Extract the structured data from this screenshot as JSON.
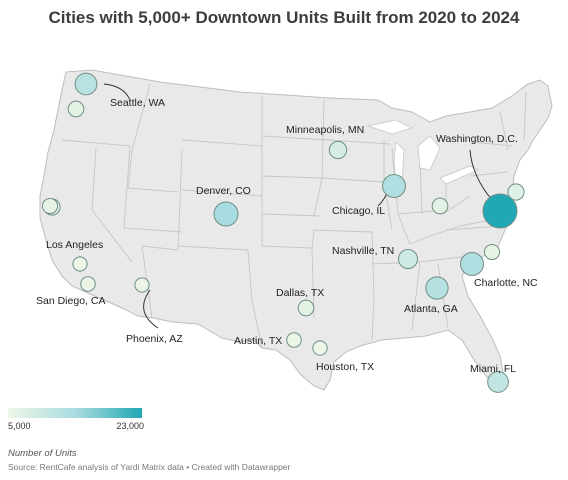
{
  "title": "Cities with 5,000+ Downtown Units Built from 2020 to 2024",
  "legend": {
    "title": "Number of Units",
    "min_label": "5,000",
    "max_label": "23,000",
    "color_low": "#eef6e6",
    "color_mid": "#a9dce0",
    "color_high": "#22a7b4"
  },
  "source": "Source: RentCafe analysis of Yardi Matrix data • Created with Datawrapper",
  "cities": [
    {
      "name": "Seattle, WA",
      "units": 12000
    },
    {
      "name": "",
      "units": 6500
    },
    {
      "name": "",
      "units": 7000
    },
    {
      "name": "",
      "units": 6000
    },
    {
      "name": "Los Angeles",
      "units": 5200
    },
    {
      "name": "San Diego, CA",
      "units": 5500
    },
    {
      "name": "Phoenix, AZ",
      "units": 5200
    },
    {
      "name": "Denver, CO",
      "units": 14000
    },
    {
      "name": "Minneapolis, MN",
      "units": 8000
    },
    {
      "name": "Chicago, IL",
      "units": 13000
    },
    {
      "name": "Dallas, TX",
      "units": 6500
    },
    {
      "name": "Austin, TX",
      "units": 5500
    },
    {
      "name": "Houston, TX",
      "units": 5300
    },
    {
      "name": "Nashville, TN",
      "units": 9500
    },
    {
      "name": "",
      "units": 6500
    },
    {
      "name": "Atlanta, GA",
      "units": 12500
    },
    {
      "name": "Charlotte, NC",
      "units": 13000
    },
    {
      "name": "",
      "units": 6000
    },
    {
      "name": "",
      "units": 7000
    },
    {
      "name": "Washington, D.C.",
      "units": 23000
    },
    {
      "name": "Miami, FL",
      "units": 11000
    }
  ]
}
